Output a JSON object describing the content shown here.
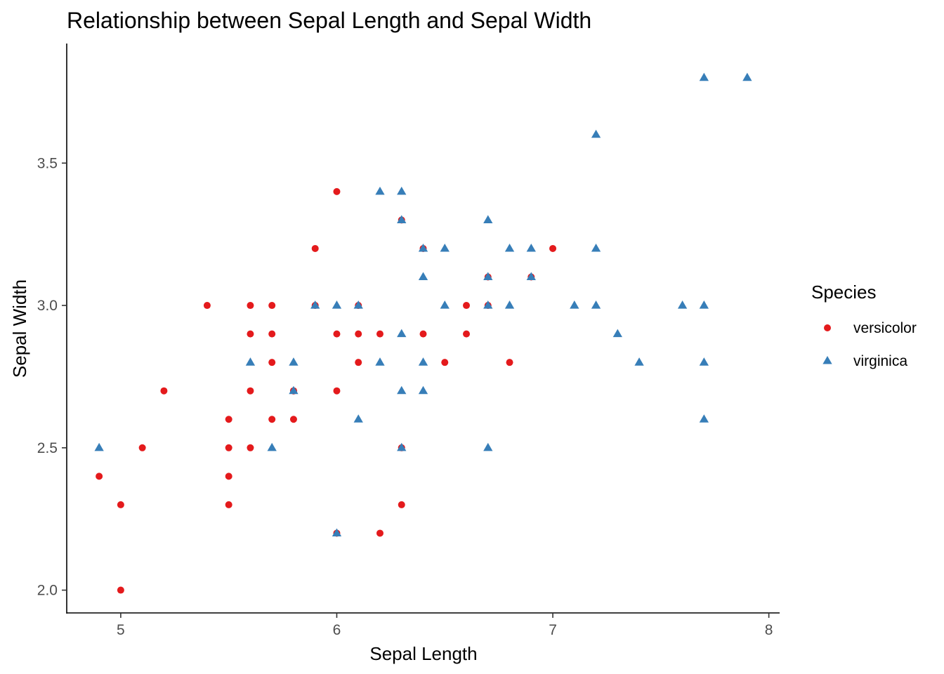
{
  "chart_data": {
    "type": "scatter",
    "title": "Relationship between Sepal Length and Sepal Width",
    "xlabel": "Sepal Length",
    "ylabel": "Sepal Width",
    "xlim": [
      4.75,
      8.05
    ],
    "ylim": [
      1.92,
      3.92
    ],
    "x_ticks": [
      5,
      6,
      7,
      8
    ],
    "x_tick_labels": [
      "5",
      "6",
      "7",
      "8"
    ],
    "y_ticks": [
      2.0,
      2.5,
      3.0,
      3.5
    ],
    "y_tick_labels": [
      "2.0",
      "2.5",
      "3.0",
      "3.5"
    ],
    "grid": false,
    "legend": {
      "title": "Species",
      "position": "right"
    },
    "series": [
      {
        "name": "versicolor",
        "marker": "circle",
        "color": "#E41A1C",
        "points": [
          [
            7.0,
            3.2
          ],
          [
            6.4,
            3.2
          ],
          [
            6.9,
            3.1
          ],
          [
            5.5,
            2.3
          ],
          [
            6.5,
            2.8
          ],
          [
            5.7,
            2.8
          ],
          [
            6.3,
            3.3
          ],
          [
            4.9,
            2.4
          ],
          [
            6.6,
            2.9
          ],
          [
            5.2,
            2.7
          ],
          [
            5.0,
            2.0
          ],
          [
            5.9,
            3.0
          ],
          [
            6.0,
            2.2
          ],
          [
            6.1,
            2.9
          ],
          [
            5.6,
            2.9
          ],
          [
            6.7,
            3.1
          ],
          [
            5.6,
            3.0
          ],
          [
            5.8,
            2.7
          ],
          [
            6.2,
            2.2
          ],
          [
            5.6,
            2.5
          ],
          [
            5.9,
            3.2
          ],
          [
            6.1,
            2.8
          ],
          [
            6.3,
            2.5
          ],
          [
            6.4,
            2.9
          ],
          [
            6.6,
            3.0
          ],
          [
            6.8,
            2.8
          ],
          [
            6.7,
            3.0
          ],
          [
            6.0,
            2.9
          ],
          [
            5.7,
            2.6
          ],
          [
            5.5,
            2.4
          ],
          [
            5.8,
            2.7
          ],
          [
            6.0,
            2.7
          ],
          [
            5.4,
            3.0
          ],
          [
            6.0,
            3.4
          ],
          [
            6.3,
            2.3
          ],
          [
            5.5,
            2.5
          ],
          [
            5.5,
            2.6
          ],
          [
            6.1,
            3.0
          ],
          [
            5.8,
            2.6
          ],
          [
            5.0,
            2.3
          ],
          [
            5.6,
            2.7
          ],
          [
            5.7,
            3.0
          ],
          [
            5.7,
            2.9
          ],
          [
            6.2,
            2.9
          ],
          [
            5.1,
            2.5
          ]
        ]
      },
      {
        "name": "virginica",
        "marker": "triangle",
        "color": "#377EB8",
        "points": [
          [
            6.3,
            3.3
          ],
          [
            5.8,
            2.7
          ],
          [
            7.1,
            3.0
          ],
          [
            6.3,
            2.9
          ],
          [
            6.5,
            3.0
          ],
          [
            7.6,
            3.0
          ],
          [
            4.9,
            2.5
          ],
          [
            7.3,
            2.9
          ],
          [
            6.7,
            2.5
          ],
          [
            7.2,
            3.6
          ],
          [
            6.5,
            3.2
          ],
          [
            6.4,
            2.7
          ],
          [
            6.8,
            3.0
          ],
          [
            5.7,
            2.5
          ],
          [
            6.4,
            3.2
          ],
          [
            7.7,
            3.8
          ],
          [
            7.7,
            2.6
          ],
          [
            6.0,
            2.2
          ],
          [
            6.9,
            3.2
          ],
          [
            5.6,
            2.8
          ],
          [
            7.7,
            2.8
          ],
          [
            6.3,
            2.7
          ],
          [
            6.7,
            3.3
          ],
          [
            7.2,
            3.2
          ],
          [
            6.2,
            2.8
          ],
          [
            6.1,
            3.0
          ],
          [
            6.4,
            2.8
          ],
          [
            7.2,
            3.0
          ],
          [
            7.4,
            2.8
          ],
          [
            7.9,
            3.8
          ],
          [
            6.1,
            2.6
          ],
          [
            7.7,
            3.0
          ],
          [
            6.3,
            3.4
          ],
          [
            6.4,
            3.1
          ],
          [
            6.0,
            3.0
          ],
          [
            6.9,
            3.1
          ],
          [
            5.8,
            2.8
          ],
          [
            6.8,
            3.2
          ],
          [
            6.7,
            3.0
          ],
          [
            6.3,
            2.5
          ],
          [
            6.2,
            3.4
          ],
          [
            5.9,
            3.0
          ],
          [
            6.7,
            3.1
          ]
        ]
      }
    ]
  }
}
